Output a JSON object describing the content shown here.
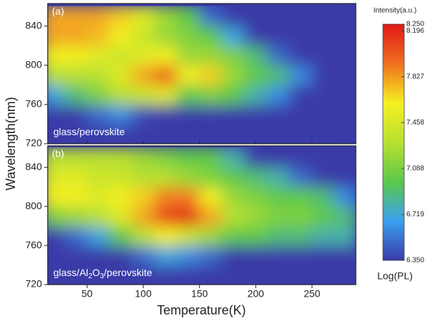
{
  "chart_data": [
    {
      "type": "heatmap",
      "panel_label": "(a)",
      "annotation_parts": [
        "glass/perovskite"
      ],
      "x": [
        20,
        40,
        60,
        80,
        100,
        120,
        140,
        160,
        180,
        200,
        220,
        240,
        260,
        280
      ],
      "y": [
        730,
        750,
        770,
        790,
        810,
        830,
        850
      ],
      "values": [
        [
          6.35,
          6.35,
          6.35,
          6.35,
          6.35,
          6.35,
          6.35,
          6.35,
          6.35,
          6.35,
          6.35,
          6.35,
          6.35,
          6.35
        ],
        [
          6.35,
          6.35,
          6.5,
          6.6,
          6.4,
          6.35,
          6.35,
          6.35,
          6.35,
          6.35,
          6.35,
          6.35,
          6.35,
          6.35
        ],
        [
          6.7,
          6.9,
          7.1,
          7.3,
          7.4,
          7.5,
          7.0,
          7.1,
          7.0,
          6.8,
          6.6,
          6.35,
          6.35,
          6.35
        ],
        [
          7.3,
          7.3,
          7.3,
          7.5,
          7.8,
          8.0,
          7.6,
          7.7,
          7.2,
          7.0,
          6.9,
          6.6,
          6.35,
          6.35
        ],
        [
          7.6,
          7.6,
          7.5,
          7.4,
          7.5,
          7.6,
          7.2,
          7.2,
          7.1,
          6.9,
          6.5,
          6.35,
          6.35,
          6.35
        ],
        [
          7.8,
          7.8,
          7.75,
          7.6,
          7.4,
          7.2,
          7.1,
          7.0,
          6.7,
          6.35,
          6.35,
          6.35,
          6.35,
          6.35
        ],
        [
          7.8,
          7.8,
          7.8,
          7.7,
          7.5,
          7.2,
          7.0,
          6.5,
          6.35,
          6.35,
          6.35,
          6.35,
          6.35,
          6.35
        ]
      ],
      "xlim": [
        15,
        289
      ],
      "ylim": [
        720,
        863
      ],
      "yticks": [
        720,
        760,
        800,
        840
      ]
    },
    {
      "type": "heatmap",
      "panel_label": "(b)",
      "annotation_parts": [
        "glass/Al",
        "2",
        "O",
        "3",
        "/perovskite"
      ],
      "x": [
        20,
        40,
        60,
        80,
        100,
        120,
        140,
        160,
        180,
        200,
        220,
        240,
        260,
        280
      ],
      "y": [
        730,
        750,
        770,
        790,
        810,
        830,
        850
      ],
      "values": [
        [
          6.35,
          6.35,
          6.35,
          6.35,
          6.35,
          6.35,
          6.35,
          6.35,
          6.35,
          6.35,
          6.35,
          6.35,
          6.35,
          6.35
        ],
        [
          6.35,
          6.35,
          6.35,
          6.35,
          6.5,
          6.7,
          6.6,
          6.5,
          6.35,
          6.35,
          6.35,
          6.35,
          6.35,
          6.35
        ],
        [
          6.35,
          6.5,
          6.7,
          7.0,
          7.3,
          7.6,
          7.4,
          7.2,
          7.0,
          7.0,
          6.9,
          6.9,
          6.8,
          6.8
        ],
        [
          7.1,
          7.2,
          7.3,
          7.5,
          7.8,
          8.1,
          8.2,
          7.8,
          7.3,
          7.2,
          7.1,
          7.1,
          7.0,
          6.9
        ],
        [
          7.6,
          7.6,
          7.5,
          7.6,
          7.7,
          7.9,
          7.9,
          7.6,
          7.2,
          7.1,
          7.0,
          7.0,
          6.9,
          6.6
        ],
        [
          7.5,
          7.5,
          7.4,
          7.4,
          7.3,
          7.3,
          7.2,
          7.1,
          7.0,
          6.9,
          6.8,
          6.5,
          6.35,
          6.35
        ],
        [
          7.3,
          7.3,
          7.3,
          7.3,
          7.2,
          7.1,
          7.0,
          7.0,
          6.8,
          6.35,
          6.35,
          6.35,
          6.35,
          6.35
        ]
      ],
      "xlim": [
        15,
        289
      ],
      "ylim": [
        720,
        862
      ],
      "yticks": [
        720,
        760,
        800,
        840
      ],
      "xticks": [
        50,
        100,
        150,
        200,
        250
      ],
      "xlabel": "Temperature(K)"
    }
  ],
  "ylabel": "Wavelength(nm)",
  "colorbar": {
    "title": "Intensity(a.u.)",
    "label": "Log(PL)",
    "lim": [
      6.35,
      8.25
    ],
    "ticks": [
      {
        "value": 8.25,
        "label": "8.250"
      },
      {
        "value": 8.196,
        "label": "8.196"
      },
      {
        "value": 7.827,
        "label": "7.827"
      },
      {
        "value": 7.458,
        "label": "7.458"
      },
      {
        "value": 7.088,
        "label": "7.088"
      },
      {
        "value": 6.719,
        "label": "6.719"
      },
      {
        "value": 6.35,
        "label": "6.350"
      }
    ],
    "colors": [
      "#3a3aa8",
      "#3aa0f0",
      "#5cc84a",
      "#b8e030",
      "#f5f020",
      "#f07020",
      "#e01818"
    ]
  }
}
